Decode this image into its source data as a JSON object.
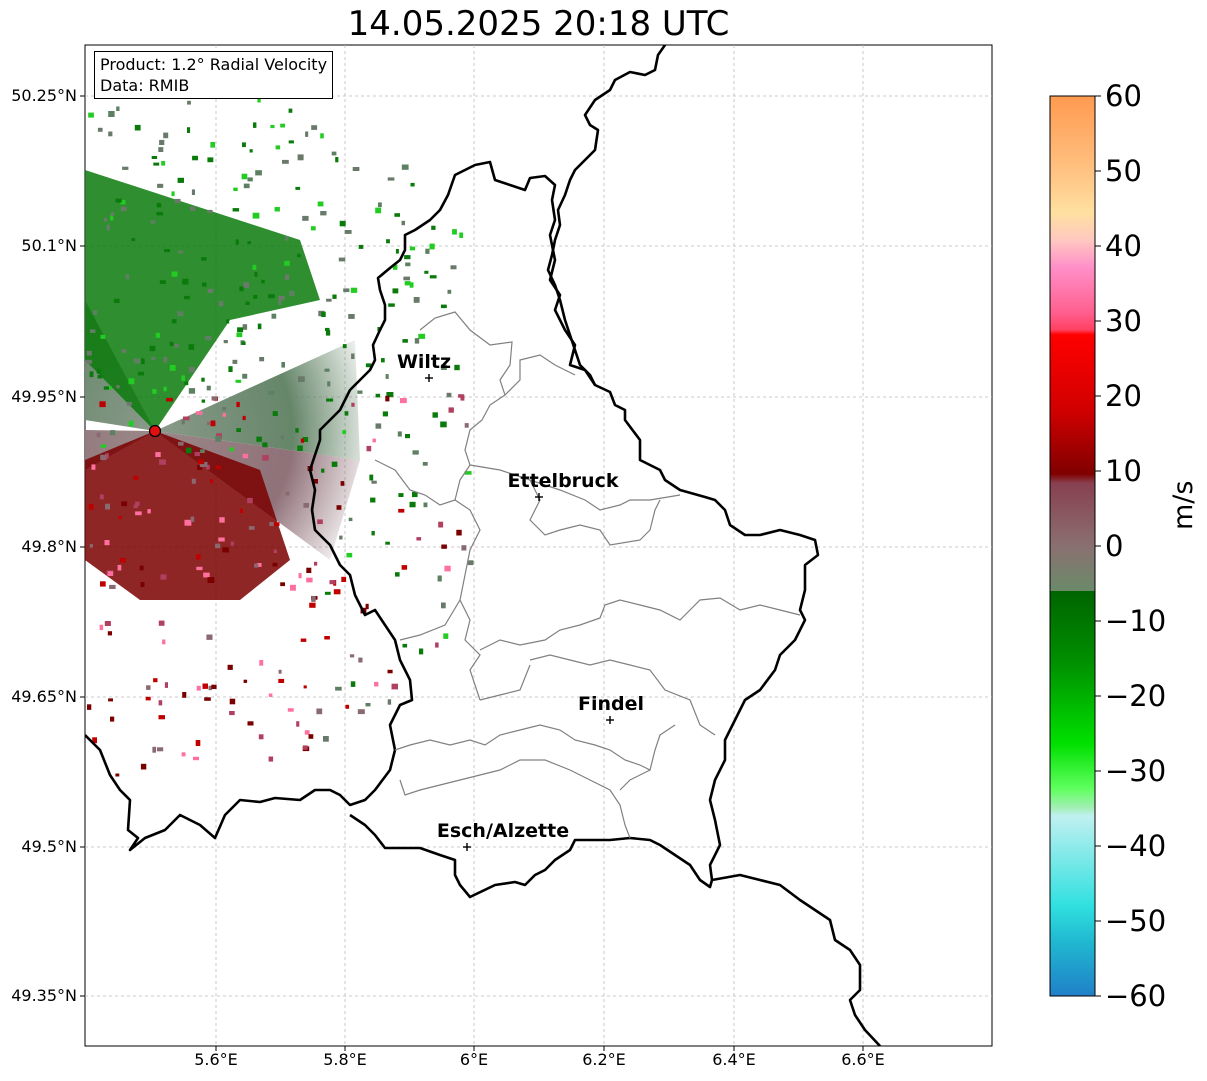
{
  "title": "14.05.2025 20:18 UTC",
  "info": {
    "product": "Product: 1.2° Radial Velocity",
    "data": "Data: RMIB"
  },
  "latitude_labels": [
    "50.25°N",
    "50.1°N",
    "49.95°N",
    "49.8°N",
    "49.65°N",
    "49.5°N",
    "49.35°N"
  ],
  "longitude_labels": [
    "5.6°E",
    "5.8°E",
    "6°E",
    "6.2°E",
    "6.4°E",
    "6.6°E"
  ],
  "cities": [
    {
      "name": "Wiltz"
    },
    {
      "name": "Ettelbruck"
    },
    {
      "name": "Findel"
    },
    {
      "name": "Esch/Alzette"
    }
  ],
  "colorbar": {
    "label": "m/s",
    "ticks": [
      "60",
      "50",
      "40",
      "30",
      "20",
      "10",
      "0",
      "−10",
      "−20",
      "−30",
      "−40",
      "−50",
      "−60"
    ],
    "min": -60,
    "max": 60
  },
  "colors": {
    "border": "#000000",
    "canton_lines": "#808080",
    "gridlines": "#bbbbbb",
    "radar_site": "#e01010",
    "inbound_green": "#007a00",
    "outbound_red": "#7a0000",
    "near_zero_green": "#5e8062",
    "near_zero_red": "#8a6a72"
  }
}
